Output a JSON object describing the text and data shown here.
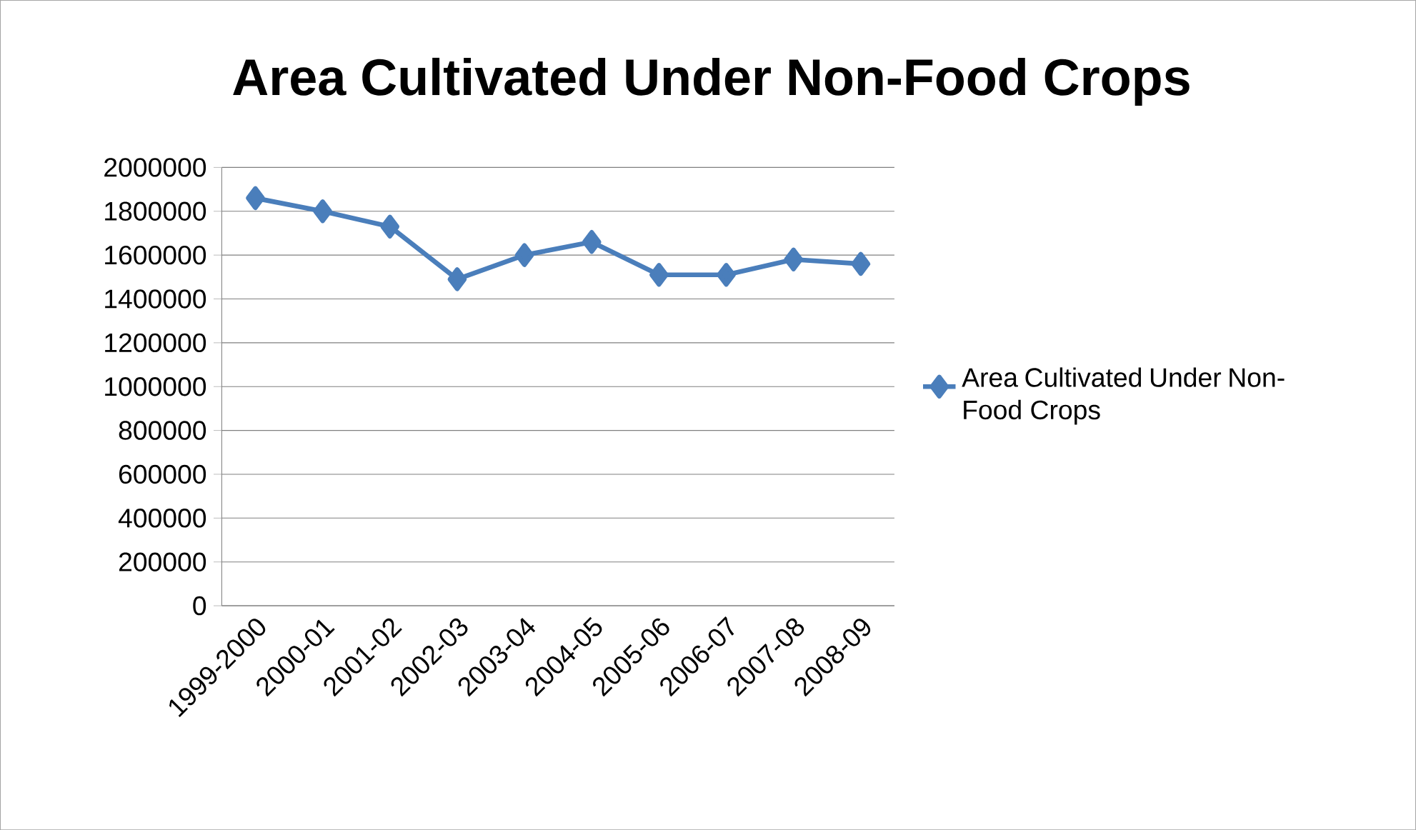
{
  "chart_data": {
    "type": "line",
    "title": "Area Cultivated Under Non-Food Crops",
    "categories": [
      "1999-2000",
      "2000-01",
      "2001-02",
      "2002-03",
      "2003-04",
      "2004-05",
      "2005-06",
      "2006-07",
      "2007-08",
      "2008-09"
    ],
    "series": [
      {
        "name": "Area Cultivated Under Non-Food Crops",
        "color": "#4a7ebb",
        "values": [
          1860000,
          1800000,
          1730000,
          1490000,
          1600000,
          1660000,
          1510000,
          1510000,
          1580000,
          1560000
        ]
      }
    ],
    "ylim": [
      0,
      2000000
    ],
    "yticks": [
      0,
      200000,
      400000,
      600000,
      800000,
      1000000,
      1200000,
      1400000,
      1600000,
      1800000,
      2000000
    ],
    "grid": "y",
    "legend": "right",
    "marker": "diamond",
    "line_style": "solid"
  }
}
